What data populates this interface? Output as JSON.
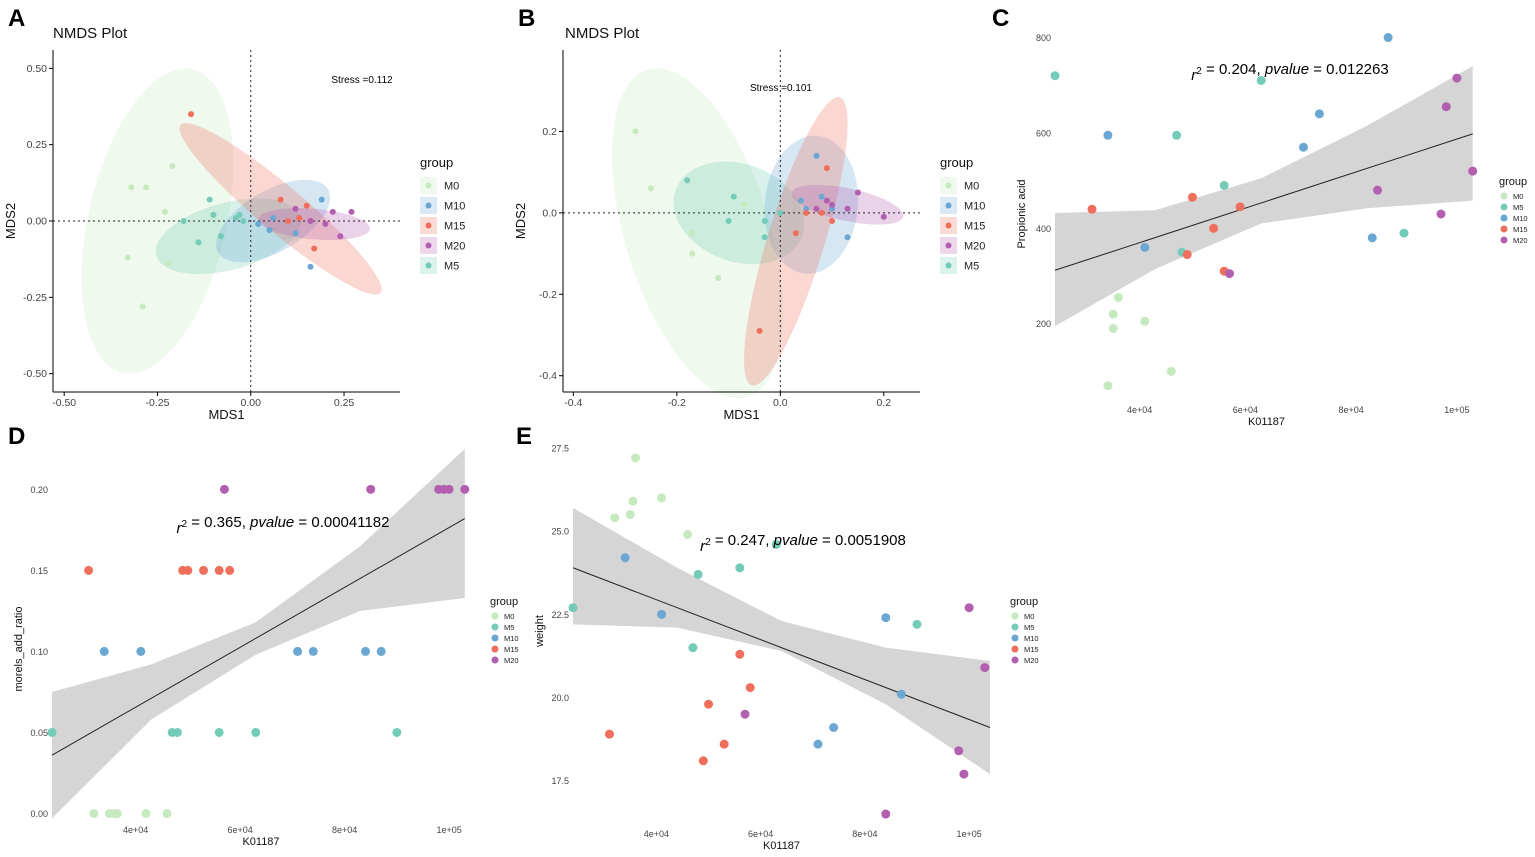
{
  "colors": {
    "M0": "#c6e9bf",
    "M5": "#74cbb8",
    "M10": "#6ba7d3",
    "M15": "#ef6f5c",
    "M20": "#b25fb0",
    "band": "#d3d3d3"
  },
  "chart_data": [
    {
      "id": "A",
      "type": "scatter",
      "panel_label": "A",
      "title": "NMDS Plot",
      "xlabel": "MDS1",
      "ylabel": "MDS2",
      "xlim": [
        -0.53,
        0.4
      ],
      "ylim": [
        -0.56,
        0.56
      ],
      "xticks": [
        -0.5,
        -0.25,
        0.0,
        0.25
      ],
      "xtick_labels": [
        "-0.50",
        "-0.25",
        "0.00",
        "0.25"
      ],
      "yticks": [
        0.5,
        0.25,
        0.0,
        -0.25,
        -0.5
      ],
      "ytick_labels": [
        "0.50",
        "0.25",
        "0.00",
        "-0.25",
        "-0.50"
      ],
      "annotation": "Stress =0.112",
      "legend_title": "group",
      "legend": [
        "M0",
        "M10",
        "M15",
        "M20",
        "M5"
      ],
      "ellipses": [
        {
          "group": "M0",
          "cx": -0.25,
          "cy": 0.0,
          "rx": 0.185,
          "ry": 0.51,
          "angle": 13
        },
        {
          "group": "M5",
          "cx": -0.06,
          "cy": -0.05,
          "rx": 0.2,
          "ry": 0.11,
          "angle": -15
        },
        {
          "group": "M10",
          "cx": 0.06,
          "cy": 0.0,
          "rx": 0.17,
          "ry": 0.1,
          "angle": -30
        },
        {
          "group": "M15",
          "cx": 0.08,
          "cy": 0.04,
          "rx": 0.35,
          "ry": 0.075,
          "angle": 40
        },
        {
          "group": "M20",
          "cx": 0.17,
          "cy": -0.01,
          "rx": 0.15,
          "ry": 0.05,
          "angle": 5
        }
      ],
      "series": [
        {
          "name": "M0",
          "x": [
            -0.33,
            -0.32,
            -0.29,
            -0.28,
            -0.23,
            -0.21,
            -0.22
          ],
          "y": [
            -0.12,
            0.11,
            -0.28,
            0.11,
            0.03,
            0.18,
            -0.14
          ]
        },
        {
          "name": "M5",
          "x": [
            -0.18,
            -0.14,
            -0.11,
            -0.1,
            -0.08,
            -0.04,
            -0.02,
            -0.03
          ],
          "y": [
            0.0,
            -0.07,
            0.07,
            0.02,
            -0.05,
            0.01,
            0.0,
            0.02
          ]
        },
        {
          "name": "M10",
          "x": [
            0.02,
            0.06,
            0.05,
            0.12,
            0.16,
            0.19
          ],
          "y": [
            -0.01,
            0.01,
            -0.03,
            -0.04,
            -0.15,
            0.07
          ]
        },
        {
          "name": "M15",
          "x": [
            -0.16,
            0.08,
            0.1,
            0.13,
            0.15,
            0.17
          ],
          "y": [
            0.35,
            0.07,
            0.0,
            0.01,
            0.05,
            -0.09
          ]
        },
        {
          "name": "M20",
          "x": [
            0.12,
            0.16,
            0.2,
            0.22,
            0.24,
            0.27
          ],
          "y": [
            0.04,
            0.0,
            -0.01,
            0.03,
            -0.05,
            0.03
          ]
        }
      ]
    },
    {
      "id": "B",
      "type": "scatter",
      "panel_label": "B",
      "title": "NMDS Plot",
      "xlabel": "MDS1",
      "ylabel": "MDS2",
      "xlim": [
        -0.42,
        0.27
      ],
      "ylim": [
        -0.44,
        0.4
      ],
      "xticks": [
        -0.4,
        -0.2,
        0.0,
        0.2
      ],
      "xtick_labels": [
        "-0.4",
        "-0.2",
        "0.0",
        "0.2"
      ],
      "yticks": [
        0.2,
        0.0,
        -0.2,
        -0.4
      ],
      "ytick_labels": [
        "0.2",
        "0.0",
        "-0.2",
        "-0.4"
      ],
      "annotation": "Stress =0.101",
      "legend_title": "group",
      "legend": [
        "M0",
        "M10",
        "M15",
        "M20",
        "M5"
      ],
      "ellipses": [
        {
          "group": "M0",
          "cx": -0.16,
          "cy": -0.05,
          "rx": 0.14,
          "ry": 0.42,
          "angle": -17
        },
        {
          "group": "M5",
          "cx": -0.08,
          "cy": 0.0,
          "rx": 0.13,
          "ry": 0.12,
          "angle": 20
        },
        {
          "group": "M10",
          "cx": 0.06,
          "cy": 0.02,
          "rx": 0.09,
          "ry": 0.17,
          "angle": 5
        },
        {
          "group": "M15",
          "cx": 0.03,
          "cy": -0.07,
          "rx": 0.055,
          "ry": 0.37,
          "angle": 17
        },
        {
          "group": "M20",
          "cx": 0.13,
          "cy": 0.02,
          "rx": 0.11,
          "ry": 0.04,
          "angle": 12
        }
      ],
      "series": [
        {
          "name": "M0",
          "x": [
            -0.28,
            -0.25,
            -0.17,
            -0.17,
            -0.12,
            -0.07
          ],
          "y": [
            0.2,
            0.06,
            -0.05,
            -0.1,
            -0.16,
            0.02
          ]
        },
        {
          "name": "M5",
          "x": [
            -0.18,
            -0.09,
            -0.1,
            -0.03,
            -0.03,
            0.0
          ],
          "y": [
            0.08,
            0.04,
            -0.02,
            -0.02,
            -0.06,
            0.0
          ]
        },
        {
          "name": "M10",
          "x": [
            0.04,
            0.05,
            0.07,
            0.08,
            0.1,
            0.13
          ],
          "y": [
            0.03,
            0.01,
            0.14,
            0.04,
            0.01,
            -0.06
          ]
        },
        {
          "name": "M15",
          "x": [
            -0.04,
            0.03,
            0.05,
            0.08,
            0.09,
            0.1
          ],
          "y": [
            -0.29,
            -0.05,
            0.0,
            0.0,
            0.11,
            -0.02
          ]
        },
        {
          "name": "M20",
          "x": [
            0.07,
            0.09,
            0.1,
            0.13,
            0.15,
            0.2
          ],
          "y": [
            0.01,
            0.03,
            0.02,
            0.01,
            0.05,
            -0.01
          ]
        }
      ]
    },
    {
      "id": "C",
      "type": "scatter",
      "panel_label": "C",
      "xlabel": "K01187",
      "ylabel": "Propionic acid",
      "xlim": [
        24000,
        104000
      ],
      "ylim": [
        40,
        820
      ],
      "xticks": [
        40000,
        60000,
        80000,
        100000
      ],
      "xtick_labels": [
        "4e+04",
        "6e+04",
        "8e+04",
        "1e+05"
      ],
      "yticks": [
        800,
        600,
        400,
        200
      ],
      "ytick_labels": [
        "800",
        "600",
        "400",
        "200"
      ],
      "annotation": "r² = 0.204,  pvalue = 0.012263",
      "annotation_prefix": "r",
      "annotation_superscript": "2",
      "annotation_r2": "= 0.204,",
      "annotation_p_label": "pvalue",
      "annotation_p_value": "= 0.012263",
      "regression": {
        "x": [
          24000,
          103000
        ],
        "y": [
          312,
          598
        ]
      },
      "band": {
        "x": [
          24000,
          43000,
          63000,
          83000,
          103000
        ],
        "lower": [
          195,
          315,
          410,
          442,
          458
        ],
        "upper": [
          432,
          438,
          505,
          615,
          740
        ]
      },
      "legend_title": "group",
      "legend": [
        "M0",
        "M5",
        "M10",
        "M15",
        "M20"
      ],
      "series": [
        {
          "name": "M0",
          "x": [
            34000,
            35000,
            35000,
            36000,
            41000,
            46000
          ],
          "y": [
            70,
            190,
            220,
            255,
            205,
            100
          ]
        },
        {
          "name": "M5",
          "x": [
            24000,
            47000,
            48000,
            56000,
            63000,
            90000
          ],
          "y": [
            720,
            595,
            350,
            490,
            710,
            390
          ]
        },
        {
          "name": "M10",
          "x": [
            34000,
            41000,
            71000,
            74000,
            84000,
            87000
          ],
          "y": [
            595,
            360,
            570,
            640,
            380,
            800
          ]
        },
        {
          "name": "M15",
          "x": [
            31000,
            49000,
            50000,
            54000,
            56000,
            59000
          ],
          "y": [
            440,
            345,
            465,
            400,
            310,
            445
          ]
        },
        {
          "name": "M20",
          "x": [
            57000,
            85000,
            97000,
            98000,
            100000,
            103000
          ],
          "y": [
            305,
            480,
            430,
            655,
            715,
            520
          ]
        }
      ]
    },
    {
      "id": "D",
      "type": "scatter",
      "panel_label": "D",
      "xlabel": "K01187",
      "ylabel": "morels_add_ratio",
      "xlim": [
        24000,
        104000
      ],
      "ylim": [
        -0.004,
        0.207
      ],
      "xticks": [
        40000,
        60000,
        80000,
        100000
      ],
      "xtick_labels": [
        "4e+04",
        "6e+04",
        "8e+04",
        "1e+05"
      ],
      "yticks": [
        0.2,
        0.15,
        0.1,
        0.05,
        0.0
      ],
      "ytick_labels": [
        "0.20",
        "0.15",
        "0.10",
        "0.05",
        "0.00"
      ],
      "annotation": "r² = 0.365,  pvalue = 0.00041182",
      "annotation_prefix": "r",
      "annotation_superscript": "2",
      "annotation_r2": "= 0.365,",
      "annotation_p_label": "pvalue",
      "annotation_p_value": "= 0.00041182",
      "regression": {
        "x": [
          24000,
          103000
        ],
        "y": [
          0.036,
          0.182
        ]
      },
      "band": {
        "x": [
          24000,
          43000,
          63000,
          83000,
          103000
        ],
        "lower": [
          -0.003,
          0.058,
          0.098,
          0.125,
          0.133
        ],
        "upper": [
          0.075,
          0.092,
          0.118,
          0.165,
          0.225
        ]
      },
      "legend_title": "group",
      "legend": [
        "M0",
        "M5",
        "M10",
        "M15",
        "M20"
      ],
      "series": [
        {
          "name": "M0",
          "x": [
            32000,
            35000,
            36000,
            36500,
            42000,
            46000
          ],
          "y": [
            0.0,
            0.0,
            0.0,
            0.0,
            0.0,
            0.0
          ]
        },
        {
          "name": "M5",
          "x": [
            24000,
            47000,
            48000,
            56000,
            63000,
            90000
          ],
          "y": [
            0.05,
            0.05,
            0.05,
            0.05,
            0.05,
            0.05
          ]
        },
        {
          "name": "M10",
          "x": [
            34000,
            41000,
            71000,
            74000,
            84000,
            87000
          ],
          "y": [
            0.1,
            0.1,
            0.1,
            0.1,
            0.1,
            0.1
          ]
        },
        {
          "name": "M15",
          "x": [
            31000,
            49000,
            50000,
            53000,
            56000,
            58000
          ],
          "y": [
            0.15,
            0.15,
            0.15,
            0.15,
            0.15,
            0.15
          ]
        },
        {
          "name": "M20",
          "x": [
            57000,
            85000,
            98000,
            99000,
            100000,
            103000
          ],
          "y": [
            0.2,
            0.2,
            0.2,
            0.2,
            0.2,
            0.2
          ]
        }
      ]
    },
    {
      "id": "E",
      "type": "scatter",
      "panel_label": "E",
      "xlabel": "K01187",
      "ylabel": "weight",
      "xlim": [
        24000,
        104000
      ],
      "ylim": [
        16.2,
        27.8
      ],
      "xticks": [
        40000,
        60000,
        80000,
        100000
      ],
      "xtick_labels": [
        "4e+04",
        "6e+04",
        "8e+04",
        "1e+05"
      ],
      "yticks": [
        27.5,
        25.0,
        22.5,
        20.0,
        17.5
      ],
      "ytick_labels": [
        "27.5",
        "25.0",
        "22.5",
        "20.0",
        "17.5"
      ],
      "annotation": "r² = 0.247,  pvalue = 0.0051908",
      "annotation_prefix": "r",
      "annotation_superscript": "2",
      "annotation_r2": "= 0.247,",
      "annotation_p_label": "pvalue",
      "annotation_p_value": "= 0.0051908",
      "regression": {
        "x": [
          24000,
          104000
        ],
        "y": [
          23.9,
          19.1
        ]
      },
      "band": {
        "x": [
          24000,
          44000,
          64000,
          84000,
          104000
        ],
        "lower": [
          22.2,
          22.1,
          21.4,
          19.8,
          17.7
        ],
        "upper": [
          25.7,
          23.9,
          22.3,
          21.5,
          21.1
        ]
      },
      "legend_title": "group",
      "legend": [
        "M0",
        "M5",
        "M10",
        "M15",
        "M20"
      ],
      "series": [
        {
          "name": "M0",
          "x": [
            32000,
            35000,
            35500,
            36000,
            41000,
            46000
          ],
          "y": [
            25.4,
            25.5,
            25.9,
            27.2,
            26.0,
            24.9
          ]
        },
        {
          "name": "M5",
          "x": [
            24000,
            47000,
            48000,
            56000,
            63000,
            90000
          ],
          "y": [
            22.7,
            21.5,
            23.7,
            23.9,
            24.6,
            22.2
          ]
        },
        {
          "name": "M10",
          "x": [
            34000,
            41000,
            71000,
            74000,
            84000,
            87000
          ],
          "y": [
            24.2,
            22.5,
            18.6,
            19.1,
            22.4,
            20.1
          ]
        },
        {
          "name": "M15",
          "x": [
            31000,
            49000,
            50000,
            53000,
            56000,
            58000
          ],
          "y": [
            18.9,
            18.1,
            19.8,
            18.6,
            21.3,
            20.3
          ]
        },
        {
          "name": "M20",
          "x": [
            57000,
            84000,
            98000,
            99000,
            100000,
            103000
          ],
          "y": [
            19.5,
            16.5,
            18.4,
            17.7,
            22.7,
            20.9
          ]
        }
      ]
    }
  ]
}
